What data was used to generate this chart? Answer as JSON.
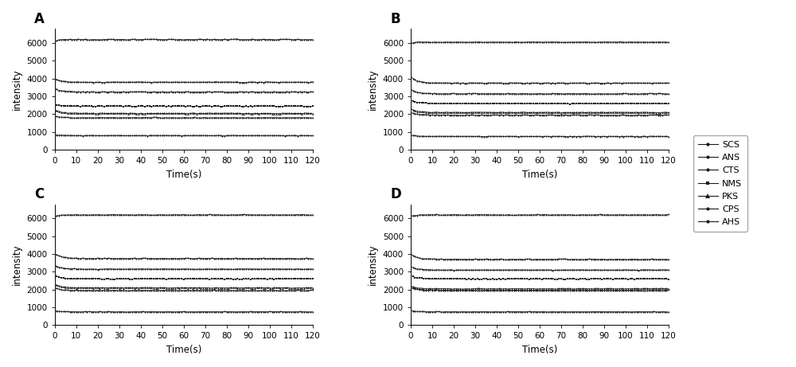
{
  "panels": [
    "A",
    "B",
    "C",
    "D"
  ],
  "legend_labels": [
    "SCS",
    "ANS",
    "CTS",
    "NMS",
    "PKS",
    "CPS",
    "AHS"
  ],
  "time_range": [
    0,
    120
  ],
  "ylabel": "intensity",
  "xlabel": "Time(s)",
  "panel_data": {
    "A": {
      "levels": [
        6200,
        3800,
        3250,
        2450,
        2050,
        1800,
        800
      ],
      "init_offsets": [
        -100,
        200,
        200,
        100,
        200,
        100,
        50
      ],
      "decay": [
        2.0,
        3.0,
        3.0,
        3.0,
        3.0,
        3.0,
        3.0
      ],
      "noise_scale": [
        15,
        15,
        15,
        15,
        15,
        15,
        10
      ]
    },
    "B": {
      "levels": [
        6050,
        3750,
        3150,
        2600,
        2100,
        1950,
        750
      ],
      "init_offsets": [
        -50,
        350,
        250,
        200,
        200,
        150,
        80
      ],
      "decay": [
        2.0,
        3.0,
        3.0,
        3.0,
        3.0,
        3.0,
        3.0
      ],
      "noise_scale": [
        15,
        15,
        15,
        15,
        15,
        15,
        10
      ]
    },
    "C": {
      "levels": [
        6200,
        3750,
        3150,
        2600,
        2100,
        1950,
        750
      ],
      "init_offsets": [
        -80,
        280,
        200,
        200,
        200,
        150,
        60
      ],
      "decay": [
        2.0,
        3.0,
        3.0,
        3.0,
        3.0,
        3.0,
        3.0
      ],
      "noise_scale": [
        15,
        15,
        15,
        15,
        15,
        15,
        10
      ]
    },
    "D": {
      "levels": [
        6200,
        3700,
        3100,
        2600,
        2050,
        1950,
        750
      ],
      "init_offsets": [
        -60,
        300,
        200,
        180,
        150,
        150,
        60
      ],
      "decay": [
        2.0,
        3.0,
        3.0,
        3.0,
        3.0,
        3.0,
        3.0
      ],
      "noise_scale": [
        15,
        15,
        15,
        15,
        15,
        15,
        10
      ]
    }
  },
  "ylim": [
    0,
    6800
  ],
  "yticks": [
    0,
    1000,
    2000,
    3000,
    4000,
    5000,
    6000
  ],
  "xticks": [
    0,
    10,
    20,
    30,
    40,
    50,
    60,
    70,
    80,
    90,
    100,
    110,
    120
  ],
  "line_color": "#1a1a1a",
  "linewidth": 0.6,
  "figsize": [
    10.0,
    4.61
  ],
  "dpi": 100,
  "legend_marker_sizes": [
    3,
    3,
    3,
    3,
    4,
    3,
    3
  ],
  "legend_markers": [
    "o",
    "o",
    "o",
    "s",
    "^",
    "o",
    "o"
  ]
}
